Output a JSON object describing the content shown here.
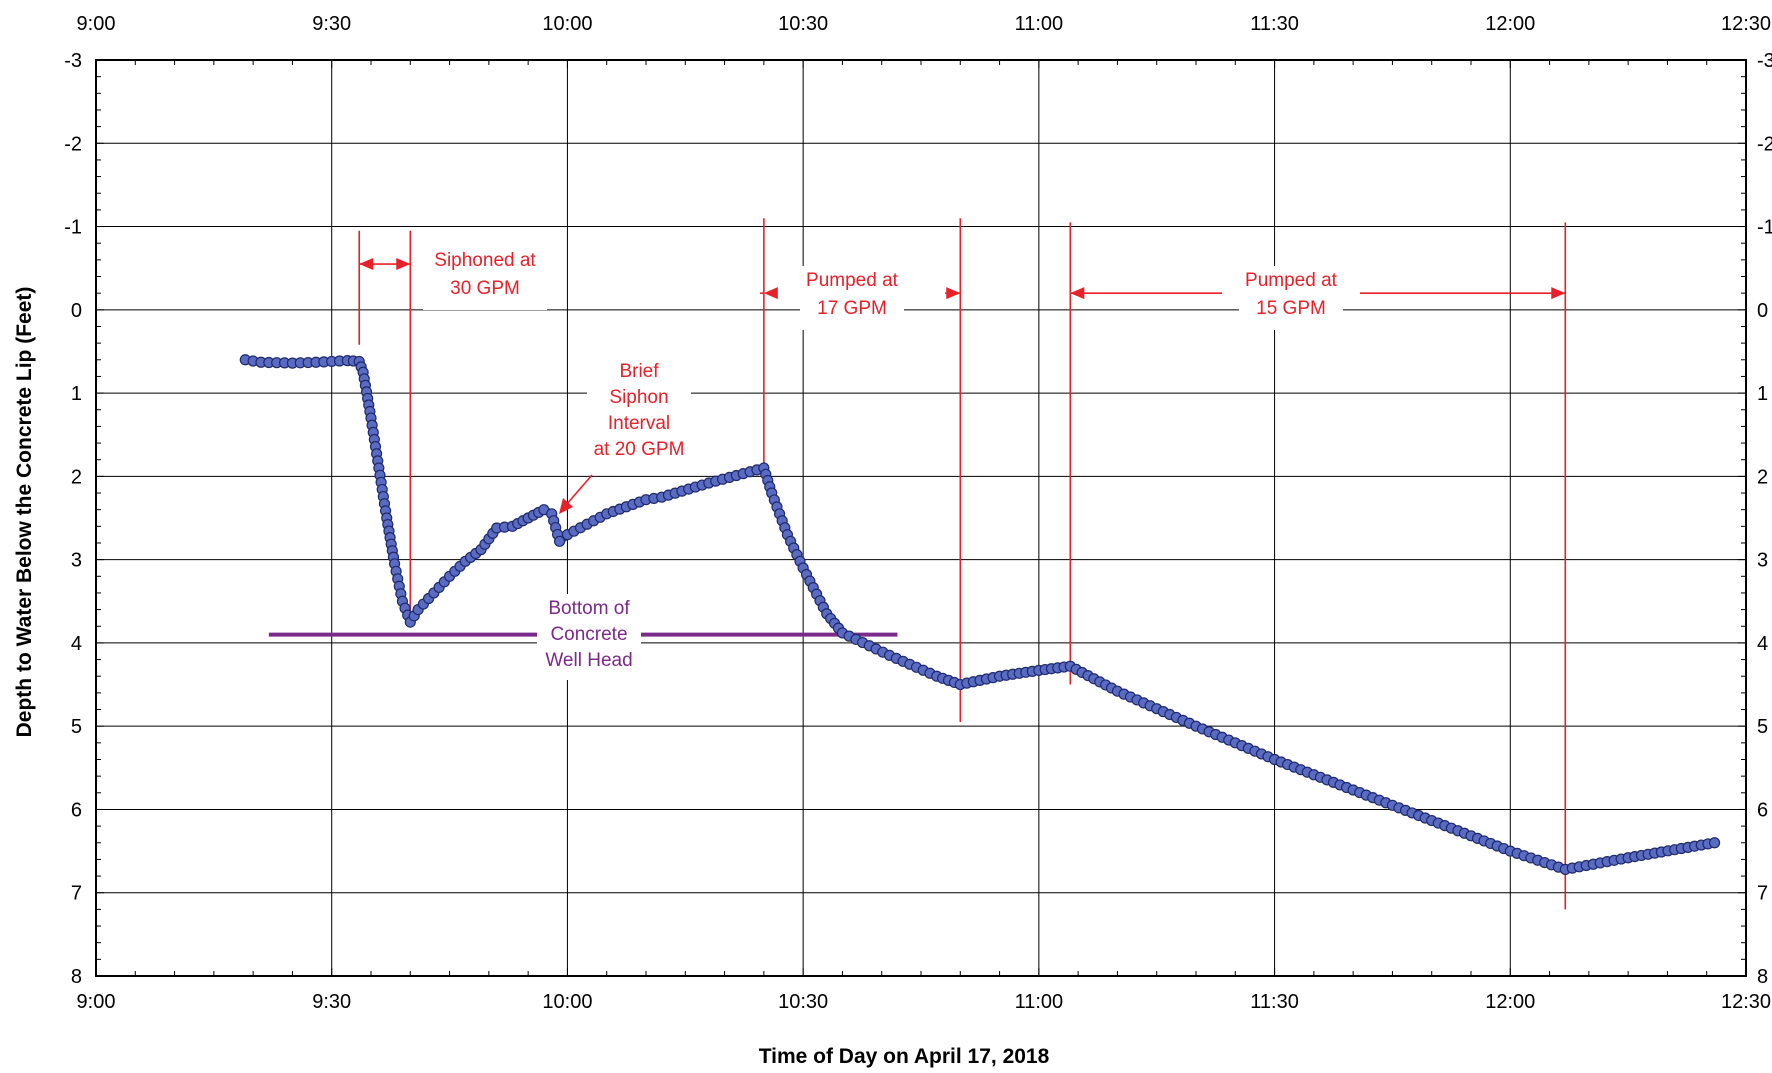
{
  "chart_data": {
    "type": "line",
    "xlabel": "Time of Day on April 17, 2018",
    "ylabel": "Depth to Water Below the Concrete Lip (Feet)",
    "x_unit": "minutes after 9:00",
    "xlim": [
      "9:00",
      "12:30"
    ],
    "x_ticks": [
      "9:00",
      "9:30",
      "10:00",
      "10:30",
      "11:00",
      "11:30",
      "12:00",
      "12:30"
    ],
    "ylim": [
      -3,
      8
    ],
    "y_inverted": true,
    "y_ticks": [
      "-3",
      "-2",
      "-1",
      "0",
      "1",
      "2",
      "3",
      "4",
      "5",
      "6",
      "7",
      "8"
    ],
    "grid": true,
    "series": [
      {
        "color": "#2e3a8c",
        "points": [
          [
            "9:19",
            0.6
          ],
          [
            "9:21",
            0.63
          ],
          [
            "9:25",
            0.64
          ],
          [
            "9:28",
            0.63
          ],
          [
            "9:32",
            0.61
          ],
          [
            "9:33.5",
            0.62
          ],
          [
            "9:34",
            0.75
          ],
          [
            "9:35",
            1.3
          ],
          [
            "9:36",
            1.9
          ],
          [
            "9:37",
            2.5
          ],
          [
            "9:38",
            3.05
          ],
          [
            "9:39",
            3.5
          ],
          [
            "9:40",
            3.75
          ],
          [
            "9:41",
            3.6
          ],
          [
            "9:43",
            3.4
          ],
          [
            "9:45",
            3.2
          ],
          [
            "9:47",
            3.02
          ],
          [
            "9:49",
            2.88
          ],
          [
            "9:50",
            2.75
          ],
          [
            "9:51",
            2.62
          ],
          [
            "9:53",
            2.6
          ],
          [
            "9:55",
            2.5
          ],
          [
            "9:57",
            2.4
          ],
          [
            "9:58",
            2.45
          ],
          [
            "9:59",
            2.78
          ],
          [
            "10:00",
            2.7
          ],
          [
            "10:05",
            2.45
          ],
          [
            "10:10",
            2.28
          ],
          [
            "10:12",
            2.25
          ],
          [
            "10:18",
            2.08
          ],
          [
            "10:25",
            1.9
          ],
          [
            "10:26",
            2.2
          ],
          [
            "10:28",
            2.7
          ],
          [
            "10:30",
            3.1
          ],
          [
            "10:33",
            3.65
          ],
          [
            "10:35",
            3.88
          ],
          [
            "10:41",
            4.15
          ],
          [
            "10:47",
            4.4
          ],
          [
            "10:50",
            4.5
          ],
          [
            "10:55",
            4.4
          ],
          [
            "11:00",
            4.33
          ],
          [
            "11:04",
            4.28
          ],
          [
            "11:10",
            4.58
          ],
          [
            "11:20",
            5.0
          ],
          [
            "11:30",
            5.4
          ],
          [
            "11:45",
            5.95
          ],
          [
            "12:00",
            6.5
          ],
          [
            "12:07",
            6.72
          ],
          [
            "12:15",
            6.58
          ],
          [
            "12:26",
            6.4
          ]
        ]
      }
    ],
    "annotations": [
      {
        "lines": [
          "Siphoned at",
          "30 GPM"
        ],
        "color": "#e8202a"
      },
      {
        "lines": [
          "Pumped at",
          "17 GPM"
        ],
        "color": "#e8202a"
      },
      {
        "lines": [
          "Pumped at",
          "15 GPM"
        ],
        "color": "#e8202a"
      },
      {
        "lines": [
          "Brief",
          "Siphon",
          "Interval",
          "at 20 GPM"
        ],
        "color": "#e8202a"
      },
      {
        "lines": [
          "Bottom of",
          "Concrete",
          "Well Head"
        ],
        "color": "#7b2a8a"
      }
    ],
    "reference_line": {
      "label": "Bottom of Concrete Well Head",
      "y": 3.9,
      "x_range": [
        "9:22",
        "10:42"
      ],
      "color": "#7b2a8a"
    },
    "interval_markers": [
      {
        "x": "9:33.5",
        "color": "#e8202a"
      },
      {
        "x": "9:40",
        "color": "#e8202a"
      },
      {
        "x": "10:25",
        "color": "#e8202a"
      },
      {
        "x": "10:50",
        "color": "#e8202a"
      },
      {
        "x": "11:04",
        "color": "#e8202a"
      },
      {
        "x": "12:07",
        "color": "#e8202a"
      }
    ]
  }
}
